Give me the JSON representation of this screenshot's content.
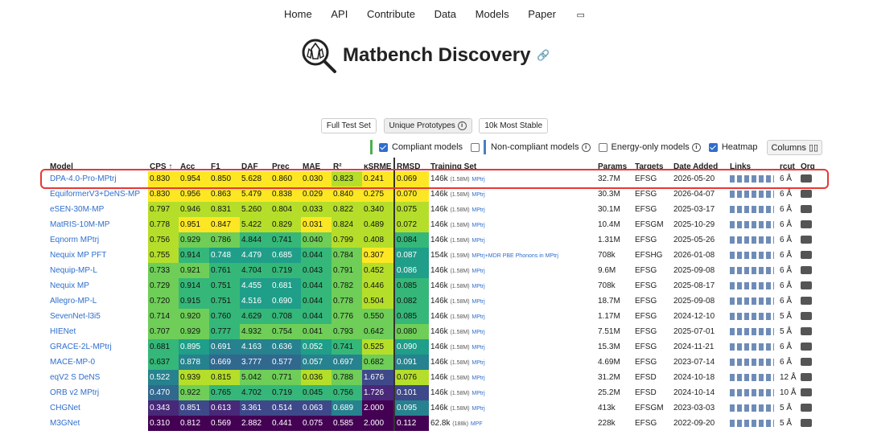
{
  "nav": [
    "Home",
    "API",
    "Contribute",
    "Data",
    "Models",
    "Paper"
  ],
  "title": "Matbench Discovery",
  "filters": [
    "Full Test Set",
    "Unique Prototypes",
    "10k Most Stable"
  ],
  "toggles": {
    "compliant": "Compliant models",
    "noncompliant": "Non-compliant models",
    "energy_only": "Energy-only models",
    "heatmap": "Heatmap",
    "columns": "Columns"
  },
  "headers": [
    "Model",
    "CPS ↑",
    "Acc",
    "F1",
    "DAF",
    "Prec",
    "MAE",
    "R²",
    "κSRME",
    "RMSD",
    "Training Set",
    "Params",
    "Targets",
    "Date Added",
    "Links",
    "rcut",
    "Org"
  ],
  "rows": [
    {
      "model": "DPA-4.0-Pro-MPtrj",
      "cps": "0.830",
      "acc": "0.954",
      "f1": "0.850",
      "daf": "5.628",
      "prec": "0.860",
      "mae": "0.030",
      "r2": "0.823",
      "k": "0.241",
      "rmsd": "0.069",
      "ts": "146k",
      "tsn": "(1.58M)",
      "tsl": "MPtrj",
      "params": "32.7M",
      "targets": "EFSG",
      "date": "2026-05-20",
      "rcut": "6 Å"
    },
    {
      "model": "EquiformerV3+DeNS-MP",
      "cps": "0.830",
      "acc": "0.956",
      "f1": "0.863",
      "daf": "5.479",
      "prec": "0.838",
      "mae": "0.029",
      "r2": "0.840",
      "k": "0.275",
      "rmsd": "0.070",
      "ts": "146k",
      "tsn": "(1.58M)",
      "tsl": "MPtrj",
      "params": "30.3M",
      "targets": "EFSG",
      "date": "2026-04-07",
      "rcut": "6 Å"
    },
    {
      "model": "eSEN-30M-MP",
      "cps": "0.797",
      "acc": "0.946",
      "f1": "0.831",
      "daf": "5.260",
      "prec": "0.804",
      "mae": "0.033",
      "r2": "0.822",
      "k": "0.340",
      "rmsd": "0.075",
      "ts": "146k",
      "tsn": "(1.58M)",
      "tsl": "MPtrj",
      "params": "30.1M",
      "targets": "EFSG",
      "date": "2025-03-17",
      "rcut": "6 Å"
    },
    {
      "model": "MatRIS-10M-MP",
      "cps": "0.778",
      "acc": "0.951",
      "f1": "0.847",
      "daf": "5.422",
      "prec": "0.829",
      "mae": "0.031",
      "r2": "0.824",
      "k": "0.489",
      "rmsd": "0.072",
      "ts": "146k",
      "tsn": "(1.58M)",
      "tsl": "MPtrj",
      "params": "10.4M",
      "targets": "EFSGM",
      "date": "2025-10-29",
      "rcut": "6 Å"
    },
    {
      "model": "Eqnorm MPtrj",
      "cps": "0.756",
      "acc": "0.929",
      "f1": "0.786",
      "daf": "4.844",
      "prec": "0.741",
      "mae": "0.040",
      "r2": "0.799",
      "k": "0.408",
      "rmsd": "0.084",
      "ts": "146k",
      "tsn": "(1.58M)",
      "tsl": "MPtrj",
      "params": "1.31M",
      "targets": "EFSG",
      "date": "2025-05-26",
      "rcut": "6 Å"
    },
    {
      "model": "Nequix MP PFT",
      "cps": "0.755",
      "acc": "0.914",
      "f1": "0.748",
      "daf": "4.479",
      "prec": "0.685",
      "mae": "0.044",
      "r2": "0.784",
      "k": "0.307",
      "rmsd": "0.087",
      "ts": "154k",
      "tsn": "(1.59M)",
      "tsl": "MPtrj+MDR PBE Phonons in MPtrj",
      "params": "708k",
      "targets": "EFSHG",
      "date": "2026-01-08",
      "rcut": "6 Å"
    },
    {
      "model": "Nequip-MP-L",
      "cps": "0.733",
      "acc": "0.921",
      "f1": "0.761",
      "daf": "4.704",
      "prec": "0.719",
      "mae": "0.043",
      "r2": "0.791",
      "k": "0.452",
      "rmsd": "0.086",
      "ts": "146k",
      "tsn": "(1.58M)",
      "tsl": "MPtrj",
      "params": "9.6M",
      "targets": "EFSG",
      "date": "2025-09-08",
      "rcut": "6 Å"
    },
    {
      "model": "Nequix MP",
      "cps": "0.729",
      "acc": "0.914",
      "f1": "0.751",
      "daf": "4.455",
      "prec": "0.681",
      "mae": "0.044",
      "r2": "0.782",
      "k": "0.446",
      "rmsd": "0.085",
      "ts": "146k",
      "tsn": "(1.58M)",
      "tsl": "MPtrj",
      "params": "708k",
      "targets": "EFSG",
      "date": "2025-08-17",
      "rcut": "6 Å"
    },
    {
      "model": "Allegro-MP-L",
      "cps": "0.720",
      "acc": "0.915",
      "f1": "0.751",
      "daf": "4.516",
      "prec": "0.690",
      "mae": "0.044",
      "r2": "0.778",
      "k": "0.504",
      "rmsd": "0.082",
      "ts": "146k",
      "tsn": "(1.58M)",
      "tsl": "MPtrj",
      "params": "18.7M",
      "targets": "EFSG",
      "date": "2025-09-08",
      "rcut": "6 Å"
    },
    {
      "model": "SevenNet-l3i5",
      "cps": "0.714",
      "acc": "0.920",
      "f1": "0.760",
      "daf": "4.629",
      "prec": "0.708",
      "mae": "0.044",
      "r2": "0.776",
      "k": "0.550",
      "rmsd": "0.085",
      "ts": "146k",
      "tsn": "(1.58M)",
      "tsl": "MPtrj",
      "params": "1.17M",
      "targets": "EFSG",
      "date": "2024-12-10",
      "rcut": "5 Å"
    },
    {
      "model": "HIENet",
      "cps": "0.707",
      "acc": "0.929",
      "f1": "0.777",
      "daf": "4.932",
      "prec": "0.754",
      "mae": "0.041",
      "r2": "0.793",
      "k": "0.642",
      "rmsd": "0.080",
      "ts": "146k",
      "tsn": "(1.58M)",
      "tsl": "MPtrj",
      "params": "7.51M",
      "targets": "EFSG",
      "date": "2025-07-01",
      "rcut": "5 Å"
    },
    {
      "model": "GRACE-2L-MPtrj",
      "cps": "0.681",
      "acc": "0.895",
      "f1": "0.691",
      "daf": "4.163",
      "prec": "0.636",
      "mae": "0.052",
      "r2": "0.741",
      "k": "0.525",
      "rmsd": "0.090",
      "ts": "146k",
      "tsn": "(1.58M)",
      "tsl": "MPtrj",
      "params": "15.3M",
      "targets": "EFSG",
      "date": "2024-11-21",
      "rcut": "6 Å"
    },
    {
      "model": "MACE-MP-0",
      "cps": "0.637",
      "acc": "0.878",
      "f1": "0.669",
      "daf": "3.777",
      "prec": "0.577",
      "mae": "0.057",
      "r2": "0.697",
      "k": "0.682",
      "rmsd": "0.091",
      "ts": "146k",
      "tsn": "(1.58M)",
      "tsl": "MPtrj",
      "params": "4.69M",
      "targets": "EFSG",
      "date": "2023-07-14",
      "rcut": "6 Å"
    },
    {
      "model": "eqV2 S DeNS",
      "cps": "0.522",
      "acc": "0.939",
      "f1": "0.815",
      "daf": "5.042",
      "prec": "0.771",
      "mae": "0.036",
      "r2": "0.788",
      "k": "1.676",
      "rmsd": "0.076",
      "ts": "146k",
      "tsn": "(1.58M)",
      "tsl": "MPtrj",
      "params": "31.2M",
      "targets": "EFSD",
      "date": "2024-10-18",
      "rcut": "12 Å"
    },
    {
      "model": "ORB v2 MPtrj",
      "cps": "0.470",
      "acc": "0.922",
      "f1": "0.765",
      "daf": "4.702",
      "prec": "0.719",
      "mae": "0.045",
      "r2": "0.756",
      "k": "1.726",
      "rmsd": "0.101",
      "ts": "146k",
      "tsn": "(1.58M)",
      "tsl": "MPtrj",
      "params": "25.2M",
      "targets": "EFSD",
      "date": "2024-10-14",
      "rcut": "10 Å"
    },
    {
      "model": "CHGNet",
      "cps": "0.343",
      "acc": "0.851",
      "f1": "0.613",
      "daf": "3.361",
      "prec": "0.514",
      "mae": "0.063",
      "r2": "0.689",
      "k": "2.000",
      "rmsd": "0.095",
      "ts": "146k",
      "tsn": "(1.58M)",
      "tsl": "MPtrj",
      "params": "413k",
      "targets": "EFSGM",
      "date": "2023-03-03",
      "rcut": "5 Å"
    },
    {
      "model": "M3GNet",
      "cps": "0.310",
      "acc": "0.812",
      "f1": "0.569",
      "daf": "2.882",
      "prec": "0.441",
      "mae": "0.075",
      "r2": "0.585",
      "k": "2.000",
      "rmsd": "0.112",
      "ts": "62.8k",
      "tsn": "(188k)",
      "tsl": "MPF",
      "params": "228k",
      "targets": "EFSG",
      "date": "2022-09-20",
      "rcut": "5 Å"
    }
  ],
  "colors": {
    "highlight": "#e53935",
    "link": "#2f6ecc",
    "viridis": [
      "#fde725",
      "#b5de2b",
      "#6ece58",
      "#35b779",
      "#1f9e89",
      "#26828e",
      "#31688e",
      "#3e4989",
      "#482878",
      "#440154"
    ]
  }
}
